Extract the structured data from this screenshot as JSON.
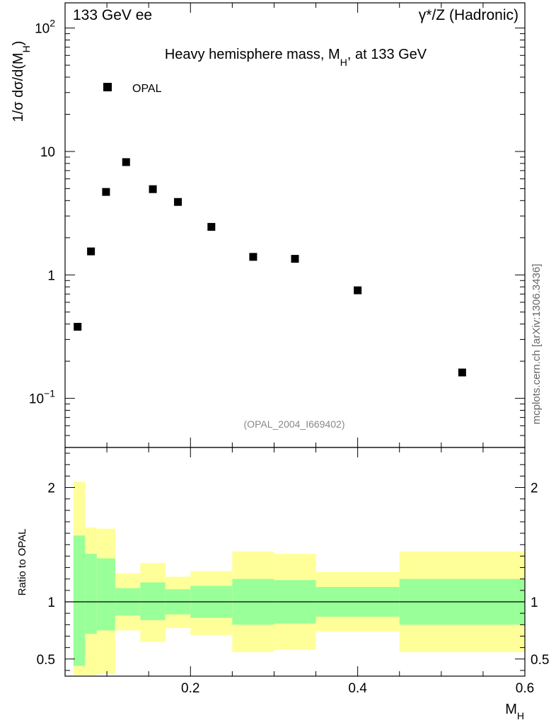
{
  "header": {
    "left": "133 GeV ee",
    "right": "γ*/Z (Hadronic)"
  },
  "side_label": "mcplots.cern.ch [arXiv:1306.3436]",
  "colors": {
    "marker": "#000000",
    "band_outer": "#ffff99",
    "band_inner": "#99ff99",
    "frame": "#000000",
    "watermark": "#888888"
  },
  "chart_data": [
    {
      "type": "scatter",
      "title": "Heavy hemisphere mass, M_H, at 133 GeV",
      "title_parts": {
        "main": "Heavy hemisphere mass, M",
        "sub": "H",
        "tail": ", at 133 GeV"
      },
      "ylabel_parts": {
        "main": "1/σ  dσ/d(M",
        "sub": "H",
        "tail": ")"
      },
      "yscale": "log",
      "ylim": [
        0.04,
        160
      ],
      "xlim": [
        0.05,
        0.6
      ],
      "yticks": [
        {
          "value": 100,
          "base": "10",
          "exp": "2"
        },
        {
          "value": 10,
          "base": "10",
          "exp": ""
        },
        {
          "value": 1,
          "base": "1",
          "exp": ""
        },
        {
          "value": 0.1,
          "base": "10",
          "exp": "−1"
        }
      ],
      "legend": {
        "label": "OPAL",
        "position": "top-left"
      },
      "watermark": "(OPAL_2004_I669402)",
      "series": [
        {
          "name": "OPAL",
          "x": [
            0.065,
            0.081,
            0.099,
            0.123,
            0.155,
            0.185,
            0.225,
            0.275,
            0.325,
            0.4,
            0.525
          ],
          "y": [
            0.38,
            1.55,
            4.7,
            8.2,
            4.95,
            3.9,
            2.45,
            1.4,
            1.35,
            0.75,
            0.162
          ]
        }
      ]
    },
    {
      "type": "area",
      "ylabel": "Ratio to OPAL",
      "xlabel_parts": {
        "main": "M",
        "sub": "H"
      },
      "xlim": [
        0.05,
        0.6
      ],
      "ylim": [
        0.35,
        2.35
      ],
      "yticks": [
        {
          "value": 2,
          "label": "2"
        },
        {
          "value": 1,
          "label": "1"
        },
        {
          "value": 0.5,
          "label": "0.5"
        }
      ],
      "xticks": [
        {
          "value": 0.2,
          "label": "0.2"
        },
        {
          "value": 0.4,
          "label": "0.4"
        },
        {
          "value": 0.6,
          "label": "0.6"
        }
      ],
      "reference_line": 1,
      "bins": [
        {
          "lo": 0.06,
          "hi": 0.074,
          "outer": [
            0.36,
            2.05
          ],
          "inner": [
            0.44,
            1.58
          ]
        },
        {
          "lo": 0.074,
          "hi": 0.088,
          "outer": [
            0.36,
            1.65
          ],
          "inner": [
            0.72,
            1.42
          ]
        },
        {
          "lo": 0.088,
          "hi": 0.11,
          "outer": [
            0.37,
            1.64
          ],
          "inner": [
            0.75,
            1.38
          ]
        },
        {
          "lo": 0.11,
          "hi": 0.14,
          "outer": [
            0.75,
            1.25
          ],
          "inner": [
            0.88,
            1.12
          ]
        },
        {
          "lo": 0.14,
          "hi": 0.17,
          "outer": [
            0.65,
            1.34
          ],
          "inner": [
            0.84,
            1.17
          ]
        },
        {
          "lo": 0.17,
          "hi": 0.2,
          "outer": [
            0.77,
            1.22
          ],
          "inner": [
            0.89,
            1.11
          ]
        },
        {
          "lo": 0.2,
          "hi": 0.25,
          "outer": [
            0.71,
            1.27
          ],
          "inner": [
            0.86,
            1.14
          ]
        },
        {
          "lo": 0.25,
          "hi": 0.3,
          "outer": [
            0.56,
            1.44
          ],
          "inner": [
            0.8,
            1.2
          ]
        },
        {
          "lo": 0.3,
          "hi": 0.35,
          "outer": [
            0.58,
            1.42
          ],
          "inner": [
            0.81,
            1.19
          ]
        },
        {
          "lo": 0.35,
          "hi": 0.45,
          "outer": [
            0.74,
            1.26
          ],
          "inner": [
            0.87,
            1.13
          ]
        },
        {
          "lo": 0.45,
          "hi": 0.6,
          "outer": [
            0.56,
            1.44
          ],
          "inner": [
            0.8,
            1.2
          ]
        }
      ]
    }
  ]
}
